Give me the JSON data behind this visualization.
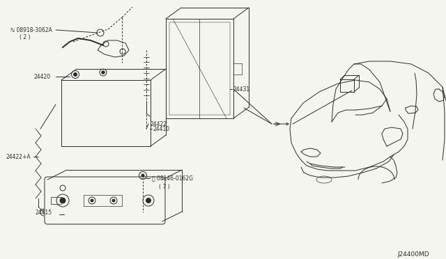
{
  "bg_color": "#f5f5f0",
  "line_color": "#2a2a2a",
  "figsize": [
    6.4,
    3.72
  ],
  "dpi": 100,
  "diagram_id": "J24400MD",
  "label_fs": 5.5,
  "parts": {
    "nut": {
      "label": "ℕ 08918-3062A",
      "sublabel": "( 2 )"
    },
    "cable_pos": {
      "label": "24420"
    },
    "cable_neg": {
      "label": "24422+A"
    },
    "battery_hold": {
      "label": "24422"
    },
    "battery": {
      "label": "24410"
    },
    "battery_cover": {
      "label": "24431"
    },
    "battery_tray": {
      "label": "24415"
    },
    "bolt": {
      "label": "Ⓑ 08146-0162G",
      "sublabel": "( 7 )"
    }
  }
}
